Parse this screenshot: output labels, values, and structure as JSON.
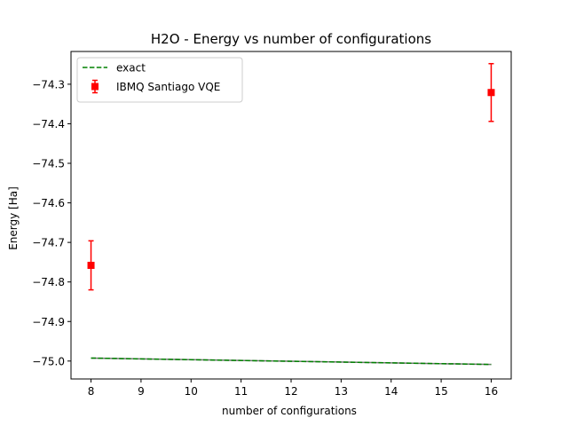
{
  "chart_data": {
    "type": "scatter",
    "title": "H2O - Energy vs number of configurations",
    "xlabel": "number of configurations",
    "ylabel": "Energy [Ha]",
    "xlim": [
      7.6,
      16.4
    ],
    "ylim": [
      -75.0453,
      -74.2172
    ],
    "xticks": [
      8,
      9,
      10,
      11,
      12,
      13,
      14,
      15,
      16
    ],
    "yticks": [
      -75.0,
      -74.9,
      -74.8,
      -74.7,
      -74.6,
      -74.5,
      -74.4,
      -74.3
    ],
    "ytick_labels": [
      "−75.0",
      "−74.9",
      "−74.8",
      "−74.7",
      "−74.6",
      "−74.5",
      "−74.4",
      "−74.3"
    ],
    "grid": false,
    "legend_position": "upper-left",
    "series": [
      {
        "name": "exact",
        "kind": "line",
        "style": "dashed",
        "color": "#008000",
        "x": [
          8,
          16
        ],
        "y": [
          -74.9925,
          -75.0086
        ]
      },
      {
        "name": "IBMQ Santiago VQE",
        "kind": "errorbar",
        "marker": "square",
        "color": "#ff0000",
        "x": [
          8,
          16
        ],
        "y": [
          -74.758,
          -74.321
        ],
        "yerr": [
          0.062,
          0.073
        ]
      }
    ]
  }
}
